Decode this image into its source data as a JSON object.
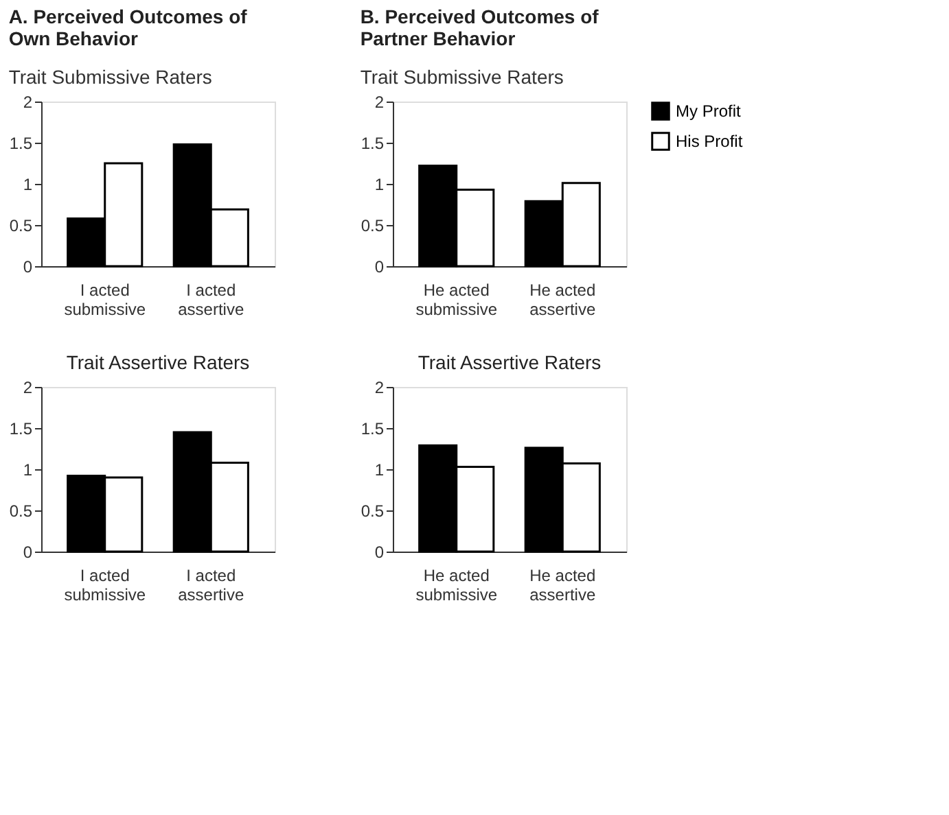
{
  "chart_data": [
    {
      "type": "bar",
      "title": "A.  Perceived Outcomes of\nOwn Behavior",
      "subtitle": "Trait Submissive Raters",
      "categories": [
        "I acted\nsubmissive",
        "I acted\nassertive"
      ],
      "series": [
        {
          "color": "#000000",
          "values": [
            0.58,
            1.48
          ]
        },
        {
          "color": "#ffffff",
          "values": [
            1.25,
            0.69
          ]
        }
      ],
      "ylim": [
        0,
        2
      ],
      "yticks": [
        0,
        0.5,
        1,
        1.5,
        2
      ],
      "grid": false,
      "legend": false
    },
    {
      "type": "bar",
      "title": "B.  Perceived Outcomes of\nPartner Behavior",
      "subtitle": "Trait Submissive Raters",
      "categories": [
        "He acted\nsubmissive",
        "He acted\nassertive"
      ],
      "series": [
        {
          "name": "My Profit",
          "color": "#000000",
          "values": [
            1.22,
            0.79
          ]
        },
        {
          "name": "His Profit",
          "color": "#ffffff",
          "values": [
            0.93,
            1.01
          ]
        }
      ],
      "ylim": [
        0,
        2
      ],
      "yticks": [
        0,
        0.5,
        1,
        1.5,
        2
      ],
      "grid": false,
      "legend": "right"
    },
    {
      "type": "bar",
      "title": "Trait Assertive Raters",
      "categories": [
        "I acted\nsubmissive",
        "I acted\nassertive"
      ],
      "series": [
        {
          "color": "#000000",
          "values": [
            0.92,
            1.45
          ]
        },
        {
          "color": "#ffffff",
          "values": [
            0.9,
            1.08
          ]
        }
      ],
      "ylim": [
        0,
        2
      ],
      "yticks": [
        0,
        0.5,
        1,
        1.5,
        2
      ],
      "grid": false,
      "legend": false
    },
    {
      "type": "bar",
      "title": "Trait Assertive Raters",
      "categories": [
        "He acted\nsubmissive",
        "He acted\nassertive"
      ],
      "series": [
        {
          "color": "#000000",
          "values": [
            1.29,
            1.26
          ]
        },
        {
          "color": "#ffffff",
          "values": [
            1.03,
            1.07
          ]
        }
      ],
      "ylim": [
        0,
        2
      ],
      "yticks": [
        0,
        0.5,
        1,
        1.5,
        2
      ],
      "grid": false,
      "legend": false
    }
  ]
}
